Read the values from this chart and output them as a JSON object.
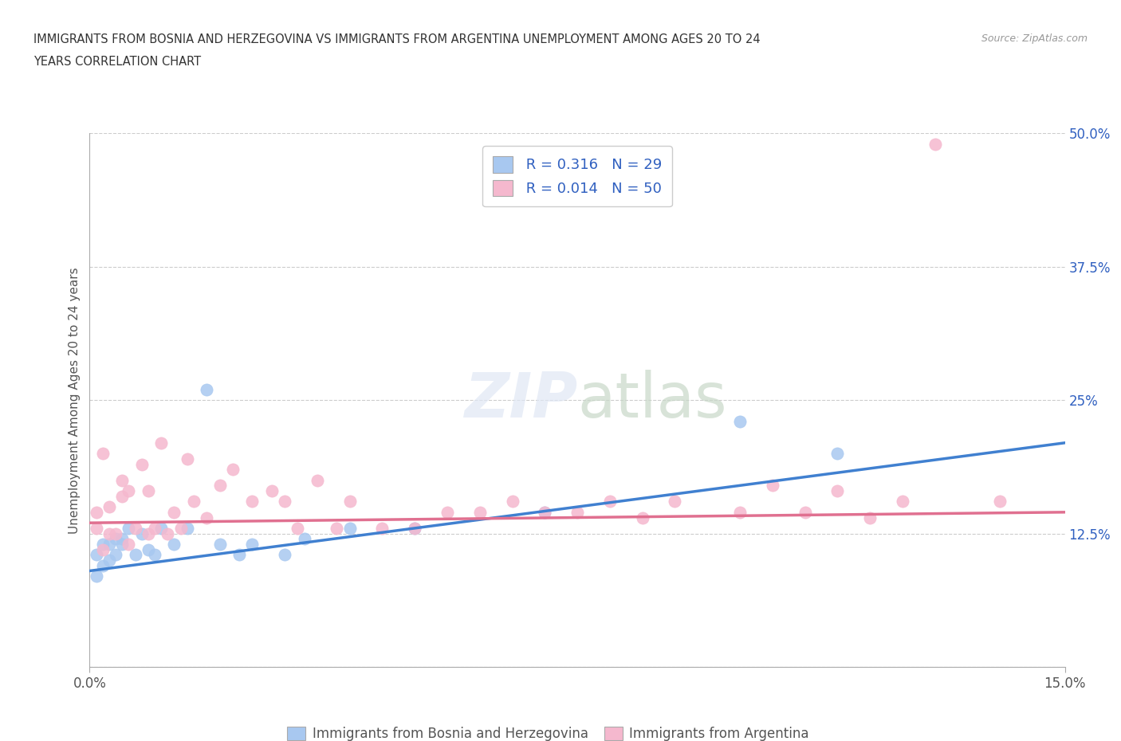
{
  "title_line1": "IMMIGRANTS FROM BOSNIA AND HERZEGOVINA VS IMMIGRANTS FROM ARGENTINA UNEMPLOYMENT AMONG AGES 20 TO 24",
  "title_line2": "YEARS CORRELATION CHART",
  "source": "Source: ZipAtlas.com",
  "ylabel": "Unemployment Among Ages 20 to 24 years",
  "xlim": [
    0.0,
    0.15
  ],
  "ylim": [
    0.0,
    0.5
  ],
  "yticks": [
    0.0,
    0.125,
    0.25,
    0.375,
    0.5
  ],
  "ytick_labels": [
    "",
    "12.5%",
    "25%",
    "37.5%",
    "50.0%"
  ],
  "xtick_labels": [
    "0.0%",
    "15.0%"
  ],
  "bosnia_color": "#A8C8F0",
  "argentina_color": "#F5B8CE",
  "bosnia_line_color": "#4080D0",
  "argentina_line_color": "#E07090",
  "legend_text_color": "#3060C0",
  "bosnia_R": 0.316,
  "bosnia_N": 29,
  "argentina_R": 0.014,
  "argentina_N": 50,
  "bosnia_x": [
    0.001,
    0.001,
    0.002,
    0.002,
    0.003,
    0.003,
    0.004,
    0.004,
    0.005,
    0.005,
    0.006,
    0.007,
    0.008,
    0.009,
    0.01,
    0.011,
    0.013,
    0.015,
    0.018,
    0.02,
    0.023,
    0.025,
    0.03,
    0.033,
    0.04,
    0.05,
    0.07,
    0.1,
    0.115
  ],
  "bosnia_y": [
    0.085,
    0.105,
    0.095,
    0.115,
    0.1,
    0.115,
    0.105,
    0.12,
    0.115,
    0.12,
    0.13,
    0.105,
    0.125,
    0.11,
    0.105,
    0.13,
    0.115,
    0.13,
    0.26,
    0.115,
    0.105,
    0.115,
    0.105,
    0.12,
    0.13,
    0.13,
    0.145,
    0.23,
    0.2
  ],
  "argentina_x": [
    0.001,
    0.001,
    0.002,
    0.002,
    0.003,
    0.003,
    0.004,
    0.005,
    0.005,
    0.006,
    0.006,
    0.007,
    0.008,
    0.009,
    0.009,
    0.01,
    0.011,
    0.012,
    0.013,
    0.014,
    0.015,
    0.016,
    0.018,
    0.02,
    0.022,
    0.025,
    0.028,
    0.03,
    0.032,
    0.035,
    0.038,
    0.04,
    0.045,
    0.05,
    0.055,
    0.06,
    0.065,
    0.07,
    0.075,
    0.08,
    0.085,
    0.09,
    0.1,
    0.105,
    0.11,
    0.115,
    0.12,
    0.125,
    0.13,
    0.14
  ],
  "argentina_y": [
    0.13,
    0.145,
    0.11,
    0.2,
    0.125,
    0.15,
    0.125,
    0.16,
    0.175,
    0.115,
    0.165,
    0.13,
    0.19,
    0.125,
    0.165,
    0.13,
    0.21,
    0.125,
    0.145,
    0.13,
    0.195,
    0.155,
    0.14,
    0.17,
    0.185,
    0.155,
    0.165,
    0.155,
    0.13,
    0.175,
    0.13,
    0.155,
    0.13,
    0.13,
    0.145,
    0.145,
    0.155,
    0.145,
    0.145,
    0.155,
    0.14,
    0.155,
    0.145,
    0.17,
    0.145,
    0.165,
    0.14,
    0.155,
    0.49,
    0.155
  ],
  "bosnia_trend_x": [
    0.0,
    0.15
  ],
  "bosnia_trend_y": [
    0.09,
    0.21
  ],
  "argentina_trend_x": [
    0.0,
    0.15
  ],
  "argentina_trend_y": [
    0.135,
    0.145
  ]
}
